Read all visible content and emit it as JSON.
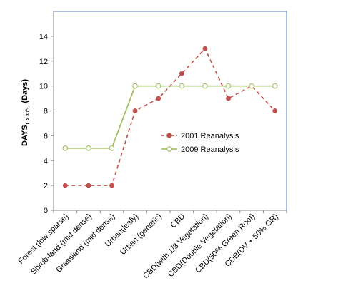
{
  "chart_data": {
    "type": "line",
    "title": "",
    "xlabel": "",
    "ylabel": "DAYS",
    "ylabel_subscript": "T > 30°C",
    "ylabel_suffix": "(Days)",
    "ylim": [
      0,
      16
    ],
    "yticks": [
      0,
      2,
      4,
      6,
      8,
      10,
      12,
      14
    ],
    "grid": false,
    "legend_position": "center-right",
    "categories": [
      "Forest (low sparse)",
      "Shrub-land (mid dense)",
      "Grassland (mid dense)",
      "Urban(leafy)",
      "Urban (generic)",
      "CBD",
      "CBD(with 1/3 Vegetation)",
      "CBD(Double Vegetation)",
      "CBD(50% Green Roof)",
      "CDB(DV + 50% GR)"
    ],
    "series": [
      {
        "name": "2001 Reanalysis",
        "values": [
          2,
          2,
          2,
          8,
          9,
          11,
          13,
          9,
          10,
          8
        ],
        "color": "#c0504d",
        "line_style": "dashed",
        "marker": "filled-circle"
      },
      {
        "name": "2009 Reanalysis",
        "values": [
          5,
          5,
          5,
          10,
          10,
          10,
          10,
          10,
          10,
          10
        ],
        "color": "#9bbb59",
        "line_style": "solid",
        "marker": "hollow-circle"
      }
    ]
  }
}
